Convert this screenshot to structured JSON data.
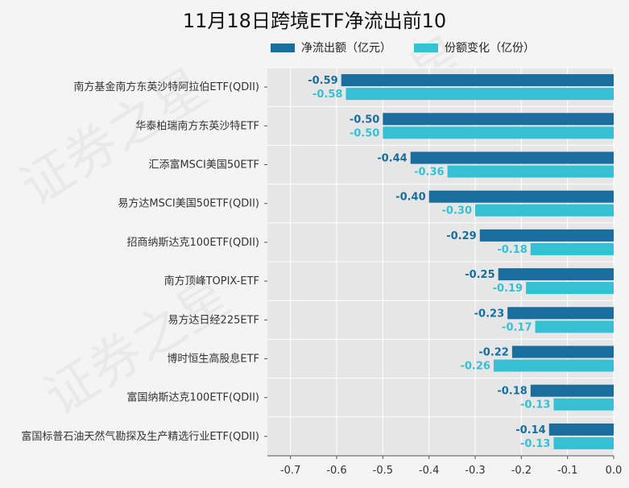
{
  "chart_data": {
    "type": "bar",
    "orientation": "horizontal",
    "title": "11月18日跨境ETF净流出前10",
    "categories": [
      "南方基金南方东英沙特阿拉伯ETF(QDII)",
      "华泰柏瑞南方东英沙特ETF",
      "汇添富MSCI美国50ETF",
      "易方达MSCI美国50ETF(QDII)",
      "招商纳斯达克100ETF(QDII)",
      "南方顶峰TOPIX-ETF",
      "易方达日经225ETF",
      "博时恒生高股息ETF",
      "富国纳斯达克100ETF(QDII)",
      "富国标普石油天然气勘探及生产精选行业ETF(QDII)"
    ],
    "series": [
      {
        "name": "净流出额（亿元）",
        "color": "#1a6e9e",
        "values": [
          -0.59,
          -0.5,
          -0.44,
          -0.4,
          -0.29,
          -0.25,
          -0.23,
          -0.22,
          -0.18,
          -0.14
        ],
        "labels": [
          "-0.59",
          "-0.50",
          "-0.44",
          "-0.40",
          "-0.29",
          "-0.25",
          "-0.23",
          "-0.22",
          "-0.18",
          "-0.14"
        ]
      },
      {
        "name": "份额变化（亿份）",
        "color": "#36c0d3",
        "values": [
          -0.58,
          -0.5,
          -0.36,
          -0.3,
          -0.18,
          -0.19,
          -0.17,
          -0.26,
          -0.13,
          -0.13
        ],
        "labels": [
          "-0.58",
          "-0.50",
          "-0.36",
          "-0.30",
          "-0.18",
          "-0.19",
          "-0.17",
          "-0.26",
          "-0.13",
          "-0.13"
        ]
      }
    ],
    "xlim": [
      -0.75,
      0.0
    ],
    "xticks": [
      -0.7,
      -0.6,
      -0.5,
      -0.4,
      -0.3,
      -0.2,
      -0.1,
      0.0
    ],
    "xtick_labels": [
      "-0.7",
      "-0.6",
      "-0.5",
      "-0.4",
      "-0.3",
      "-0.2",
      "-0.1",
      "0.0"
    ],
    "xlabel": "",
    "ylabel": "",
    "grid": true,
    "legend_position": "top"
  },
  "watermark": "证券之星"
}
